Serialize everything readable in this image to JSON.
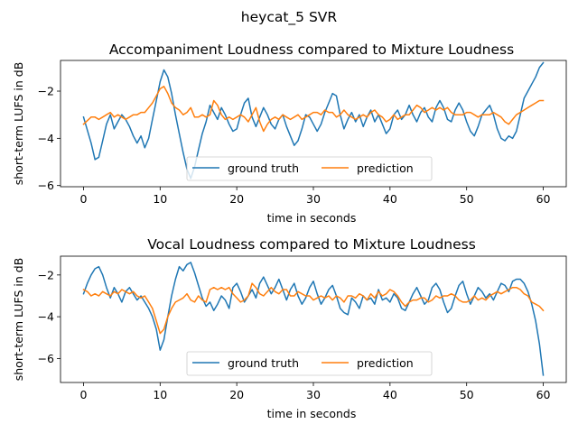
{
  "figure": {
    "title": "heycat_5 SVR"
  },
  "chart_data": [
    {
      "type": "line",
      "title": "Accompaniment Loudness compared to Mixture Loudness",
      "xlabel": "time in seconds",
      "ylabel": "short-term LUFS in dB",
      "xlim": [
        -3,
        63
      ],
      "ylim": [
        -6.05,
        -0.7
      ],
      "xticks": [
        0,
        10,
        20,
        30,
        40,
        50,
        60
      ],
      "yticks": [
        -6,
        -4,
        -2
      ],
      "grid": false,
      "legend_position": "lower-center",
      "series": [
        {
          "name": "ground truth",
          "color": "#1f77b4",
          "x": [
            0,
            1,
            1.5,
            2,
            2.5,
            3,
            3.5,
            4,
            4.5,
            5,
            5.5,
            6,
            6.5,
            7,
            7.5,
            8,
            8.5,
            9,
            9.5,
            10,
            10.5,
            11,
            11.5,
            12,
            12.5,
            13,
            13.5,
            14,
            14.5,
            15,
            15.5,
            16,
            16.5,
            17,
            17.5,
            18,
            18.5,
            19,
            19.5,
            20,
            20.5,
            21,
            21.5,
            22,
            22.5,
            23,
            23.5,
            24,
            24.5,
            25,
            25.5,
            26,
            26.5,
            27,
            27.5,
            28,
            28.5,
            29,
            29.5,
            30,
            30.5,
            31,
            31.5,
            32,
            32.5,
            33,
            33.5,
            34,
            34.5,
            35,
            35.5,
            36,
            36.5,
            37,
            37.5,
            38,
            38.5,
            39,
            39.5,
            40,
            40.5,
            41,
            41.5,
            42,
            42.5,
            43,
            43.5,
            44,
            44.5,
            45,
            45.5,
            46,
            46.5,
            47,
            47.5,
            48,
            48.5,
            49,
            49.5,
            50,
            50.5,
            51,
            51.5,
            52,
            52.5,
            53,
            53.5,
            54,
            54.5,
            55,
            55.5,
            56,
            56.5,
            57,
            57.5,
            58,
            58.5,
            59,
            59.5,
            60
          ],
          "y": [
            -3.1,
            -4.2,
            -4.9,
            -4.8,
            -4.1,
            -3.4,
            -3.0,
            -3.6,
            -3.3,
            -3.0,
            -3.2,
            -3.5,
            -3.9,
            -4.2,
            -3.9,
            -4.4,
            -4.0,
            -3.2,
            -2.4,
            -1.6,
            -1.1,
            -1.4,
            -2.1,
            -3.0,
            -3.8,
            -4.6,
            -5.3,
            -5.7,
            -5.2,
            -4.5,
            -3.8,
            -3.3,
            -2.6,
            -2.9,
            -3.2,
            -2.7,
            -3.0,
            -3.4,
            -3.7,
            -3.6,
            -3.0,
            -2.5,
            -2.3,
            -3.1,
            -3.5,
            -3.1,
            -2.7,
            -3.0,
            -3.4,
            -3.6,
            -3.2,
            -3.0,
            -3.5,
            -3.9,
            -4.3,
            -4.1,
            -3.6,
            -3.0,
            -3.1,
            -3.4,
            -3.7,
            -3.4,
            -2.9,
            -2.5,
            -2.1,
            -2.2,
            -3.0,
            -3.6,
            -3.2,
            -2.9,
            -3.3,
            -3.0,
            -3.5,
            -3.1,
            -2.8,
            -3.3,
            -3.0,
            -3.4,
            -3.8,
            -3.6,
            -3.0,
            -2.8,
            -3.2,
            -3.0,
            -2.6,
            -3.0,
            -3.3,
            -2.9,
            -2.7,
            -3.1,
            -3.3,
            -2.7,
            -2.4,
            -2.7,
            -3.2,
            -3.3,
            -2.8,
            -2.5,
            -2.8,
            -3.3,
            -3.7,
            -3.9,
            -3.5,
            -3.0,
            -2.8,
            -2.6,
            -3.0,
            -3.6,
            -4.0,
            -4.1,
            -3.9,
            -4.0,
            -3.7,
            -3.0,
            -2.3,
            -2.0,
            -1.7,
            -1.4,
            -1.0,
            -0.8
          ]
        },
        {
          "name": "prediction",
          "color": "#ff7f0e",
          "x": [
            0,
            1,
            1.5,
            2,
            2.5,
            3,
            3.5,
            4,
            4.5,
            5,
            5.5,
            6,
            6.5,
            7,
            7.5,
            8,
            8.5,
            9,
            9.5,
            10,
            10.5,
            11,
            11.5,
            12,
            12.5,
            13,
            13.5,
            14,
            14.5,
            15,
            15.5,
            16,
            16.5,
            17,
            17.5,
            18,
            18.5,
            19,
            19.5,
            20,
            20.5,
            21,
            21.5,
            22,
            22.5,
            23,
            23.5,
            24,
            24.5,
            25,
            25.5,
            26,
            26.5,
            27,
            27.5,
            28,
            28.5,
            29,
            29.5,
            30,
            30.5,
            31,
            31.5,
            32,
            32.5,
            33,
            33.5,
            34,
            34.5,
            35,
            35.5,
            36,
            36.5,
            37,
            37.5,
            38,
            38.5,
            39,
            39.5,
            40,
            40.5,
            41,
            41.5,
            42,
            42.5,
            43,
            43.5,
            44,
            44.5,
            45,
            45.5,
            46,
            46.5,
            47,
            47.5,
            48,
            48.5,
            49,
            49.5,
            50,
            50.5,
            51,
            51.5,
            52,
            52.5,
            53,
            53.5,
            54,
            54.5,
            55,
            55.5,
            56,
            56.5,
            57,
            57.5,
            58,
            58.5,
            59,
            59.5,
            60
          ],
          "y": [
            -3.4,
            -3.1,
            -3.1,
            -3.2,
            -3.1,
            -3.0,
            -2.9,
            -3.1,
            -3.0,
            -3.1,
            -3.2,
            -3.1,
            -3.0,
            -3.0,
            -2.9,
            -2.9,
            -2.7,
            -2.5,
            -2.2,
            -1.9,
            -1.8,
            -2.1,
            -2.5,
            -2.7,
            -2.8,
            -3.0,
            -2.9,
            -2.7,
            -3.1,
            -3.1,
            -3.0,
            -3.1,
            -3.0,
            -2.4,
            -2.6,
            -3.0,
            -3.2,
            -3.1,
            -3.2,
            -3.1,
            -3.0,
            -3.1,
            -3.3,
            -3.0,
            -2.7,
            -3.3,
            -3.7,
            -3.4,
            -3.2,
            -3.1,
            -3.2,
            -3.0,
            -3.1,
            -3.2,
            -3.1,
            -3.0,
            -3.2,
            -3.1,
            -3.0,
            -2.9,
            -2.9,
            -3.0,
            -2.8,
            -2.9,
            -2.9,
            -3.1,
            -3.0,
            -2.8,
            -3.0,
            -3.1,
            -3.2,
            -3.1,
            -3.0,
            -3.1,
            -2.9,
            -2.8,
            -3.0,
            -3.1,
            -3.3,
            -3.2,
            -3.0,
            -3.2,
            -3.1,
            -3.0,
            -3.0,
            -2.8,
            -2.6,
            -2.7,
            -2.9,
            -2.8,
            -2.7,
            -2.8,
            -2.7,
            -2.8,
            -2.7,
            -2.9,
            -3.0,
            -3.0,
            -3.0,
            -2.9,
            -2.9,
            -3.0,
            -3.1,
            -3.0,
            -3.0,
            -3.0,
            -2.9,
            -3.0,
            -3.1,
            -3.3,
            -3.4,
            -3.2,
            -3.0,
            -2.9,
            -2.8,
            -2.7,
            -2.6,
            -2.5,
            -2.4,
            -2.4
          ]
        }
      ]
    },
    {
      "type": "line",
      "title": "Vocal Loudness compared to Mixture Loudness",
      "xlabel": "time in seconds",
      "ylabel": "short-term LUFS in dB",
      "xlim": [
        -3,
        63
      ],
      "ylim": [
        -7.15,
        -1.1
      ],
      "xticks": [
        0,
        10,
        20,
        30,
        40,
        50,
        60
      ],
      "yticks": [
        -6,
        -4,
        -2
      ],
      "grid": false,
      "legend_position": "lower-center",
      "series": [
        {
          "name": "ground truth",
          "color": "#1f77b4",
          "x": [
            0,
            0.5,
            1,
            1.5,
            2,
            2.5,
            3,
            3.5,
            4,
            4.5,
            5,
            5.5,
            6,
            6.5,
            7,
            7.5,
            8,
            8.5,
            9,
            9.5,
            10,
            10.5,
            11,
            11.5,
            12,
            12.5,
            13,
            13.5,
            14,
            14.5,
            15,
            15.5,
            16,
            16.5,
            17,
            17.5,
            18,
            18.5,
            19,
            19.5,
            20,
            20.5,
            21,
            21.5,
            22,
            22.5,
            23,
            23.5,
            24,
            24.5,
            25,
            25.5,
            26,
            26.5,
            27,
            27.5,
            28,
            28.5,
            29,
            29.5,
            30,
            30.5,
            31,
            31.5,
            32,
            32.5,
            33,
            33.5,
            34,
            34.5,
            35,
            35.5,
            36,
            36.5,
            37,
            37.5,
            38,
            38.5,
            39,
            39.5,
            40,
            40.5,
            41,
            41.5,
            42,
            42.5,
            43,
            43.5,
            44,
            44.5,
            45,
            45.5,
            46,
            46.5,
            47,
            47.5,
            48,
            48.5,
            49,
            49.5,
            50,
            50.5,
            51,
            51.5,
            52,
            52.5,
            53,
            53.5,
            54,
            54.5,
            55,
            55.5,
            56,
            56.5,
            57,
            57.5,
            58,
            58.5,
            59,
            59.5,
            60
          ],
          "y": [
            -2.9,
            -2.4,
            -2.0,
            -1.7,
            -1.6,
            -2.0,
            -2.6,
            -3.1,
            -2.6,
            -2.9,
            -3.3,
            -2.8,
            -2.6,
            -2.9,
            -3.2,
            -3.0,
            -3.3,
            -3.6,
            -4.0,
            -4.6,
            -5.6,
            -5.1,
            -4.0,
            -3.0,
            -2.2,
            -1.6,
            -1.8,
            -1.5,
            -1.4,
            -1.9,
            -2.5,
            -3.1,
            -3.5,
            -3.3,
            -3.7,
            -3.4,
            -3.0,
            -3.2,
            -3.6,
            -2.6,
            -2.4,
            -2.8,
            -3.3,
            -3.0,
            -2.7,
            -3.1,
            -2.4,
            -2.1,
            -2.5,
            -2.9,
            -2.6,
            -2.2,
            -2.7,
            -3.2,
            -2.7,
            -2.4,
            -3.0,
            -3.4,
            -3.1,
            -2.6,
            -2.3,
            -2.9,
            -3.4,
            -3.1,
            -2.7,
            -2.5,
            -3.0,
            -3.6,
            -3.8,
            -3.9,
            -3.1,
            -3.3,
            -3.6,
            -3.0,
            -3.2,
            -3.1,
            -3.4,
            -2.7,
            -3.2,
            -3.1,
            -3.3,
            -2.9,
            -3.1,
            -3.6,
            -3.7,
            -3.3,
            -2.9,
            -2.6,
            -3.0,
            -3.4,
            -3.2,
            -2.6,
            -2.4,
            -2.7,
            -3.3,
            -3.8,
            -3.6,
            -3.0,
            -2.5,
            -2.3,
            -2.9,
            -3.4,
            -3.0,
            -2.6,
            -2.8,
            -3.1,
            -2.9,
            -3.2,
            -2.8,
            -2.4,
            -2.5,
            -2.8,
            -2.3,
            -2.2,
            -2.2,
            -2.4,
            -2.8,
            -3.4,
            -4.2,
            -5.3,
            -6.8
          ]
        },
        {
          "name": "prediction",
          "color": "#ff7f0e",
          "x": [
            0,
            0.5,
            1,
            1.5,
            2,
            2.5,
            3,
            3.5,
            4,
            4.5,
            5,
            5.5,
            6,
            6.5,
            7,
            7.5,
            8,
            8.5,
            9,
            9.5,
            10,
            10.5,
            11,
            11.5,
            12,
            12.5,
            13,
            13.5,
            14,
            14.5,
            15,
            15.5,
            16,
            16.5,
            17,
            17.5,
            18,
            18.5,
            19,
            19.5,
            20,
            20.5,
            21,
            21.5,
            22,
            22.5,
            23,
            23.5,
            24,
            24.5,
            25,
            25.5,
            26,
            26.5,
            27,
            27.5,
            28,
            28.5,
            29,
            29.5,
            30,
            30.5,
            31,
            31.5,
            32,
            32.5,
            33,
            33.5,
            34,
            34.5,
            35,
            35.5,
            36,
            36.5,
            37,
            37.5,
            38,
            38.5,
            39,
            39.5,
            40,
            40.5,
            41,
            41.5,
            42,
            42.5,
            43,
            43.5,
            44,
            44.5,
            45,
            45.5,
            46,
            46.5,
            47,
            47.5,
            48,
            48.5,
            49,
            49.5,
            50,
            50.5,
            51,
            51.5,
            52,
            52.5,
            53,
            53.5,
            54,
            54.5,
            55,
            55.5,
            56,
            56.5,
            57,
            57.5,
            58,
            58.5,
            59,
            59.5,
            60
          ],
          "y": [
            -2.7,
            -2.8,
            -3.0,
            -2.9,
            -3.0,
            -2.8,
            -2.9,
            -3.0,
            -2.8,
            -2.9,
            -2.7,
            -2.8,
            -2.9,
            -2.8,
            -3.0,
            -3.1,
            -3.0,
            -3.3,
            -3.6,
            -4.2,
            -4.8,
            -4.6,
            -4.0,
            -3.6,
            -3.3,
            -3.2,
            -3.1,
            -2.9,
            -3.2,
            -3.3,
            -3.0,
            -3.2,
            -3.3,
            -2.7,
            -2.6,
            -2.7,
            -2.6,
            -2.7,
            -2.6,
            -2.9,
            -3.1,
            -3.3,
            -3.2,
            -3.0,
            -2.4,
            -2.6,
            -2.9,
            -3.0,
            -2.8,
            -2.6,
            -2.8,
            -2.9,
            -2.7,
            -2.7,
            -3.0,
            -3.0,
            -2.8,
            -2.9,
            -3.0,
            -3.0,
            -3.2,
            -3.1,
            -3.0,
            -3.1,
            -3.0,
            -3.2,
            -3.0,
            -3.1,
            -3.3,
            -3.0,
            -3.0,
            -3.1,
            -2.9,
            -3.0,
            -3.2,
            -2.9,
            -3.1,
            -2.8,
            -3.0,
            -2.9,
            -2.7,
            -2.8,
            -3.0,
            -3.3,
            -3.5,
            -3.3,
            -3.2,
            -3.2,
            -3.1,
            -3.1,
            -3.3,
            -3.2,
            -3.0,
            -3.1,
            -3.0,
            -3.0,
            -2.9,
            -3.0,
            -3.2,
            -3.3,
            -3.3,
            -3.2,
            -3.0,
            -3.2,
            -3.1,
            -3.2,
            -3.0,
            -2.9,
            -2.8,
            -2.9,
            -2.8,
            -2.7,
            -2.6,
            -2.6,
            -2.7,
            -2.9,
            -3.0,
            -3.3,
            -3.4,
            -3.5,
            -3.7
          ]
        }
      ]
    }
  ]
}
